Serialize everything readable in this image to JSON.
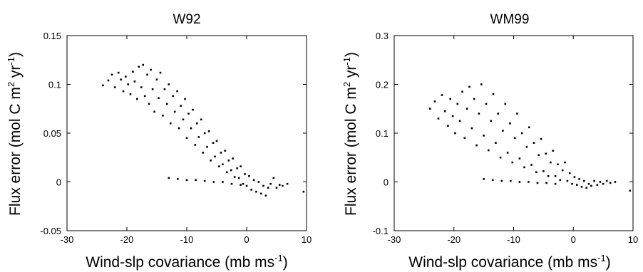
{
  "chart_data": [
    {
      "type": "scatter",
      "title": "W92",
      "xlabel": "Wind-slp covariance (mb ms",
      "xlabel_sup": "-1",
      "xlabel_end": ")",
      "ylabel_parts": [
        "Flux error (mol C m",
        "2",
        " yr",
        "-1",
        ")"
      ],
      "xlim": [
        -30,
        10
      ],
      "ylim": [
        -0.05,
        0.15
      ],
      "xticks": [
        -30,
        -20,
        -10,
        0,
        10
      ],
      "xtick_labels": [
        "-30",
        "-20",
        "-10",
        "0",
        "10"
      ],
      "yticks": [
        -0.05,
        0,
        0.05,
        0.1,
        0.15
      ],
      "ytick_labels": [
        "-0.05",
        "0",
        "0.05",
        "0.1",
        "0.15"
      ],
      "grid": false,
      "marker_color": "#000000",
      "points": [
        [
          -24.0,
          0.099
        ],
        [
          -23.1,
          0.104
        ],
        [
          -22.5,
          0.11
        ],
        [
          -22.0,
          0.097
        ],
        [
          -21.4,
          0.112
        ],
        [
          -21.0,
          0.105
        ],
        [
          -20.6,
          0.093
        ],
        [
          -20.2,
          0.108
        ],
        [
          -19.8,
          0.1
        ],
        [
          -19.4,
          0.09
        ],
        [
          -19.0,
          0.113
        ],
        [
          -18.7,
          0.103
        ],
        [
          -18.3,
          0.085
        ],
        [
          -18.0,
          0.118
        ],
        [
          -17.6,
          0.097
        ],
        [
          -17.3,
          0.12
        ],
        [
          -17.0,
          0.088
        ],
        [
          -16.6,
          0.11
        ],
        [
          -16.3,
          0.08
        ],
        [
          -16.0,
          0.115
        ],
        [
          -15.7,
          0.095
        ],
        [
          -15.4,
          0.072
        ],
        [
          -15.0,
          0.105
        ],
        [
          -14.7,
          0.086
        ],
        [
          -14.4,
          0.112
        ],
        [
          -14.0,
          0.068
        ],
        [
          -13.7,
          0.095
        ],
        [
          -13.3,
          0.08
        ],
        [
          -13.0,
          0.1
        ],
        [
          -12.7,
          0.06
        ],
        [
          -12.3,
          0.088
        ],
        [
          -12.0,
          0.072
        ],
        [
          -11.6,
          0.093
        ],
        [
          -11.3,
          0.055
        ],
        [
          -11.0,
          0.078
        ],
        [
          -10.6,
          0.064
        ],
        [
          -10.3,
          0.085
        ],
        [
          -10.0,
          0.045
        ],
        [
          -9.7,
          0.07
        ],
        [
          -9.3,
          0.055
        ],
        [
          -9.0,
          0.074
        ],
        [
          -8.6,
          0.038
        ],
        [
          -8.3,
          0.06
        ],
        [
          -8.0,
          0.046
        ],
        [
          -7.6,
          0.064
        ],
        [
          -7.3,
          0.03
        ],
        [
          -7.0,
          0.05
        ],
        [
          -6.6,
          0.036
        ],
        [
          -6.3,
          0.052
        ],
        [
          -6.0,
          0.022
        ],
        [
          -5.6,
          0.04
        ],
        [
          -5.3,
          0.026
        ],
        [
          -5.0,
          0.042
        ],
        [
          -4.6,
          0.016
        ],
        [
          -4.3,
          0.03
        ],
        [
          -4.0,
          0.018
        ],
        [
          -3.6,
          0.032
        ],
        [
          -3.3,
          0.01
        ],
        [
          -3.0,
          0.022
        ],
        [
          -2.6,
          0.012
        ],
        [
          -2.3,
          0.024
        ],
        [
          -2.0,
          0.005
        ],
        [
          -1.6,
          0.014
        ],
        [
          -1.3,
          0.004
        ],
        [
          -1.0,
          0.016
        ],
        [
          -0.6,
          -0.002
        ],
        [
          -0.3,
          0.008
        ],
        [
          0.0,
          -0.004
        ],
        [
          0.4,
          0.006
        ],
        [
          0.8,
          -0.008
        ],
        [
          1.2,
          0.002
        ],
        [
          1.6,
          -0.01
        ],
        [
          2.0,
          0.0
        ],
        [
          2.4,
          -0.012
        ],
        [
          2.8,
          -0.004
        ],
        [
          3.2,
          -0.014
        ],
        [
          3.6,
          -0.006
        ],
        [
          4.0,
          -0.002
        ],
        [
          4.5,
          0.004
        ],
        [
          5.0,
          -0.006
        ],
        [
          5.5,
          -0.003
        ],
        [
          6.0,
          -0.004
        ],
        [
          6.8,
          -0.002
        ],
        [
          9.5,
          -0.01
        ],
        [
          -13.0,
          0.004
        ],
        [
          -11.5,
          0.003
        ],
        [
          -10.0,
          0.002
        ],
        [
          -8.5,
          0.002
        ],
        [
          -7.0,
          0.001
        ],
        [
          -5.5,
          0.0
        ],
        [
          -4.0,
          0.0
        ],
        [
          -2.5,
          -0.002
        ],
        [
          -1.0,
          -0.003
        ]
      ]
    },
    {
      "type": "scatter",
      "title": "WM99",
      "xlabel": "Wind-slp covariance (mb ms",
      "xlabel_sup": "-1",
      "xlabel_end": ")",
      "ylabel_parts": [
        "Flux error (mol C m",
        "2",
        " yr",
        "-1",
        ")"
      ],
      "xlim": [
        -30,
        10
      ],
      "ylim": [
        -0.1,
        0.3
      ],
      "xticks": [
        -30,
        -20,
        -10,
        0,
        10
      ],
      "xtick_labels": [
        "-30",
        "-20",
        "-10",
        "0",
        "10"
      ],
      "yticks": [
        -0.1,
        0,
        0.1,
        0.2,
        0.3
      ],
      "ytick_labels": [
        "-0.1",
        "0",
        "0.1",
        "0.2",
        "0.3"
      ],
      "grid": false,
      "marker_color": "#000000",
      "points": [
        [
          -24.0,
          0.15
        ],
        [
          -23.2,
          0.165
        ],
        [
          -22.6,
          0.13
        ],
        [
          -22.0,
          0.178
        ],
        [
          -21.5,
          0.145
        ],
        [
          -21.0,
          0.115
        ],
        [
          -20.6,
          0.17
        ],
        [
          -20.2,
          0.135
        ],
        [
          -19.8,
          0.1
        ],
        [
          -19.4,
          0.16
        ],
        [
          -19.0,
          0.125
        ],
        [
          -18.6,
          0.185
        ],
        [
          -18.2,
          0.09
        ],
        [
          -17.8,
          0.15
        ],
        [
          -17.4,
          0.195
        ],
        [
          -17.0,
          0.11
        ],
        [
          -16.6,
          0.17
        ],
        [
          -16.2,
          0.075
        ],
        [
          -15.8,
          0.14
        ],
        [
          -15.4,
          0.2
        ],
        [
          -15.0,
          0.095
        ],
        [
          -14.6,
          0.16
        ],
        [
          -14.2,
          0.065
        ],
        [
          -13.8,
          0.125
        ],
        [
          -13.4,
          0.18
        ],
        [
          -13.0,
          0.08
        ],
        [
          -12.6,
          0.14
        ],
        [
          -12.2,
          0.05
        ],
        [
          -11.8,
          0.105
        ],
        [
          -11.4,
          0.16
        ],
        [
          -11.0,
          0.06
        ],
        [
          -10.6,
          0.12
        ],
        [
          -10.2,
          0.04
        ],
        [
          -9.8,
          0.09
        ],
        [
          -9.4,
          0.14
        ],
        [
          -9.0,
          0.048
        ],
        [
          -8.6,
          0.1
        ],
        [
          -8.2,
          0.03
        ],
        [
          -7.8,
          0.072
        ],
        [
          -7.4,
          0.112
        ],
        [
          -7.0,
          0.035
        ],
        [
          -6.6,
          0.08
        ],
        [
          -6.2,
          0.02
        ],
        [
          -5.8,
          0.055
        ],
        [
          -5.4,
          0.088
        ],
        [
          -5.0,
          0.022
        ],
        [
          -4.6,
          0.058
        ],
        [
          -4.2,
          0.012
        ],
        [
          -3.8,
          0.04
        ],
        [
          -3.4,
          0.064
        ],
        [
          -3.0,
          0.012
        ],
        [
          -2.6,
          0.036
        ],
        [
          -2.2,
          0.004
        ],
        [
          -1.8,
          0.024
        ],
        [
          -1.4,
          0.04
        ],
        [
          -1.0,
          0.002
        ],
        [
          -0.6,
          0.018
        ],
        [
          -0.2,
          -0.004
        ],
        [
          0.2,
          0.01
        ],
        [
          0.6,
          -0.006
        ],
        [
          1.0,
          0.006
        ],
        [
          1.4,
          -0.01
        ],
        [
          1.8,
          0.002
        ],
        [
          2.2,
          -0.012
        ],
        [
          2.6,
          -0.004
        ],
        [
          3.0,
          -0.008
        ],
        [
          3.5,
          0.002
        ],
        [
          4.0,
          -0.006
        ],
        [
          4.5,
          0.0
        ],
        [
          5.0,
          -0.004
        ],
        [
          5.6,
          0.002
        ],
        [
          6.2,
          -0.002
        ],
        [
          7.0,
          0.0
        ],
        [
          9.5,
          -0.018
        ],
        [
          -15.0,
          0.006
        ],
        [
          -13.5,
          0.004
        ],
        [
          -12.0,
          0.002
        ],
        [
          -10.5,
          0.002
        ],
        [
          -9.0,
          0.0
        ],
        [
          -7.5,
          0.0
        ],
        [
          -6.0,
          -0.002
        ],
        [
          -4.5,
          -0.002
        ],
        [
          -3.0,
          -0.004
        ]
      ]
    }
  ]
}
